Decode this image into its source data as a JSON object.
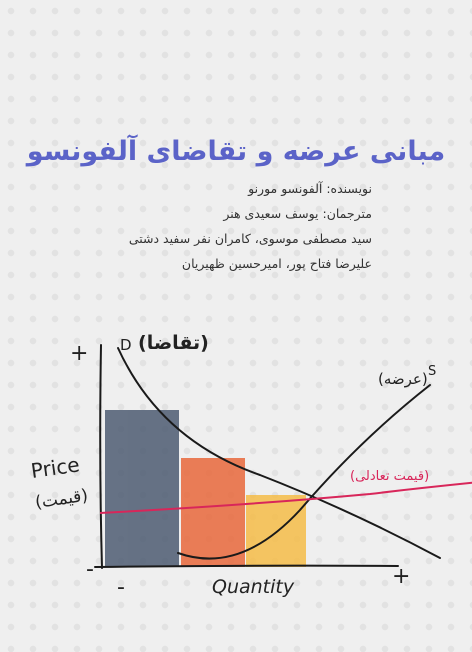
{
  "title": "مبانی عرضه و تقاضای آلفونسو",
  "credits": [
    "نویسنده: آلفونسو مورنو",
    "مترجمان: یوسف سعیدی هنر",
    "سید مصطفی موسوی، کامران نفر سفید دشتی",
    "علیرضا فتاح پور، امیرحسین ظهیریان"
  ],
  "illustration": {
    "demand_letter": "D",
    "demand_label": "(تقاضا)",
    "supply_letter": "S",
    "supply_label": "(عرضه)",
    "equilibrium_label": "(قیمت تعادلی)",
    "y_label": "Price",
    "y_label_fa": "(قیمت)",
    "x_label": "Quantity",
    "y_plus": "+",
    "y_minus": "-",
    "x_plus": "+",
    "x_minus": "-"
  }
}
